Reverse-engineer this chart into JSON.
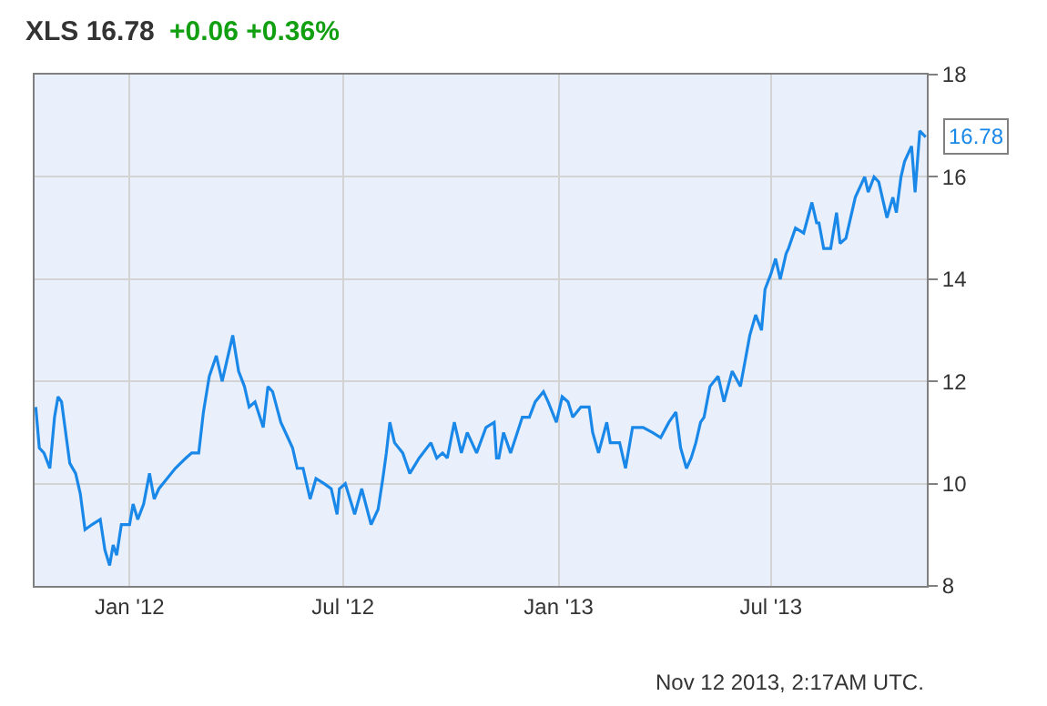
{
  "chart_data": {
    "type": "line",
    "title": "XLS 16.78",
    "subtitle": "+0.06 +0.36%",
    "x": [
      "2011-10-13",
      "2011-10-16",
      "2011-10-20",
      "2011-10-25",
      "2011-10-29",
      "2011-11-01",
      "2011-11-04",
      "2011-11-11",
      "2011-11-16",
      "2011-11-20",
      "2011-11-24",
      "2011-11-30",
      "2011-12-07",
      "2011-12-11",
      "2011-12-15",
      "2011-12-18",
      "2011-12-21",
      "2011-12-25",
      "2012-01-01",
      "2012-01-04",
      "2012-01-08",
      "2012-01-13",
      "2012-01-18",
      "2012-01-22",
      "2012-01-26",
      "2012-02-02",
      "2012-02-09",
      "2012-02-18",
      "2012-02-23",
      "2012-02-29",
      "2012-03-04",
      "2012-03-09",
      "2012-03-15",
      "2012-03-20",
      "2012-03-24",
      "2012-03-29",
      "2012-04-03",
      "2012-04-08",
      "2012-04-12",
      "2012-04-17",
      "2012-04-24",
      "2012-04-28",
      "2012-05-02",
      "2012-05-09",
      "2012-05-15",
      "2012-05-19",
      "2012-05-23",
      "2012-05-28",
      "2012-06-03",
      "2012-06-08",
      "2012-06-15",
      "2012-06-21",
      "2012-06-26",
      "2012-06-28",
      "2012-07-03",
      "2012-07-11",
      "2012-07-17",
      "2012-07-25",
      "2012-07-31",
      "2012-08-04",
      "2012-08-07",
      "2012-08-10",
      "2012-08-14",
      "2012-08-21",
      "2012-08-27",
      "2012-09-04",
      "2012-09-14",
      "2012-09-19",
      "2012-09-24",
      "2012-09-28",
      "2012-10-04",
      "2012-10-10",
      "2012-10-15",
      "2012-10-23",
      "2012-10-31",
      "2012-11-07",
      "2012-11-09",
      "2012-11-11",
      "2012-11-15",
      "2012-11-21",
      "2012-12-01",
      "2012-12-07",
      "2012-12-12",
      "2012-12-19",
      "2012-12-23",
      "2012-12-30",
      "2013-01-04",
      "2013-01-09",
      "2013-01-13",
      "2013-01-20",
      "2013-01-27",
      "2013-01-30",
      "2013-02-04",
      "2013-02-11",
      "2013-02-14",
      "2013-02-22",
      "2013-02-27",
      "2013-03-05",
      "2013-03-14",
      "2013-03-22",
      "2013-03-29",
      "2013-04-05",
      "2013-04-11",
      "2013-04-15",
      "2013-04-20",
      "2013-04-24",
      "2013-04-28",
      "2013-05-02",
      "2013-05-05",
      "2013-05-10",
      "2013-05-17",
      "2013-05-22",
      "2013-05-29",
      "2013-06-05",
      "2013-06-09",
      "2013-06-13",
      "2013-06-18",
      "2013-06-23",
      "2013-06-26",
      "2013-07-01",
      "2013-07-05",
      "2013-07-09",
      "2013-07-14",
      "2013-07-16",
      "2013-07-22",
      "2013-07-29",
      "2013-08-05",
      "2013-08-09",
      "2013-08-11",
      "2013-08-15",
      "2013-08-21",
      "2013-08-26",
      "2013-08-29",
      "2013-09-03",
      "2013-09-11",
      "2013-09-19",
      "2013-09-22",
      "2013-09-27",
      "2013-10-01",
      "2013-10-08",
      "2013-10-13",
      "2013-10-16",
      "2013-10-20",
      "2013-10-23",
      "2013-10-29",
      "2013-11-01",
      "2013-11-05",
      "2013-11-10"
    ],
    "series": [
      {
        "color": "#1a88e8",
        "values": [
          11.5,
          10.7,
          10.6,
          10.3,
          11.3,
          11.7,
          11.6,
          10.4,
          10.2,
          9.8,
          9.1,
          9.2,
          9.3,
          8.7,
          8.4,
          8.8,
          8.6,
          9.2,
          9.2,
          9.6,
          9.3,
          9.6,
          10.2,
          9.7,
          9.9,
          10.1,
          10.3,
          10.5,
          10.6,
          10.6,
          11.4,
          12.1,
          12.5,
          12.0,
          12.4,
          12.9,
          12.2,
          11.9,
          11.5,
          11.6,
          11.1,
          11.9,
          11.8,
          11.2,
          10.9,
          10.7,
          10.3,
          10.3,
          9.7,
          10.1,
          10.0,
          9.9,
          9.4,
          9.9,
          10.0,
          9.4,
          9.9,
          9.2,
          9.5,
          10.1,
          10.6,
          11.2,
          10.8,
          10.6,
          10.2,
          10.5,
          10.8,
          10.5,
          10.6,
          10.5,
          11.2,
          10.6,
          11.0,
          10.6,
          11.1,
          11.2,
          10.5,
          10.5,
          11.0,
          10.6,
          11.3,
          11.3,
          11.6,
          11.8,
          11.6,
          11.2,
          11.7,
          11.6,
          11.3,
          11.5,
          11.5,
          11.0,
          10.6,
          11.2,
          10.8,
          10.8,
          10.3,
          11.1,
          11.1,
          11.0,
          10.9,
          11.2,
          11.4,
          10.7,
          10.3,
          10.5,
          10.8,
          11.2,
          11.3,
          11.9,
          12.1,
          11.6,
          12.2,
          11.9,
          12.4,
          12.9,
          13.3,
          13.0,
          13.8,
          14.1,
          14.4,
          14.0,
          14.5,
          14.6,
          15.0,
          14.9,
          15.5,
          15.1,
          15.1,
          14.6,
          14.6,
          15.3,
          14.7,
          14.8,
          15.6,
          16.0,
          15.7,
          16.0,
          15.9,
          15.2,
          15.6,
          15.3,
          16.0,
          16.3,
          16.6,
          15.7,
          16.9,
          16.78
        ]
      }
    ],
    "xlim": [
      "2011-10-12",
      "2013-11-11"
    ],
    "xticks": [
      {
        "value": "2012-01-01",
        "label": "Jan '12"
      },
      {
        "value": "2012-07-01",
        "label": "Jul '12"
      },
      {
        "value": "2013-01-01",
        "label": "Jan '13"
      },
      {
        "value": "2013-07-01",
        "label": "Jul '13"
      }
    ],
    "ylim": [
      8,
      18
    ],
    "yticks": [
      8,
      10,
      12,
      14,
      16,
      18
    ],
    "grid": true,
    "line_style": "solid",
    "annotations": [
      {
        "text": "16.78",
        "x": "2013-11-10",
        "y": 16.78
      },
      "Nov 12 2013, 2:17AM UTC."
    ]
  }
}
